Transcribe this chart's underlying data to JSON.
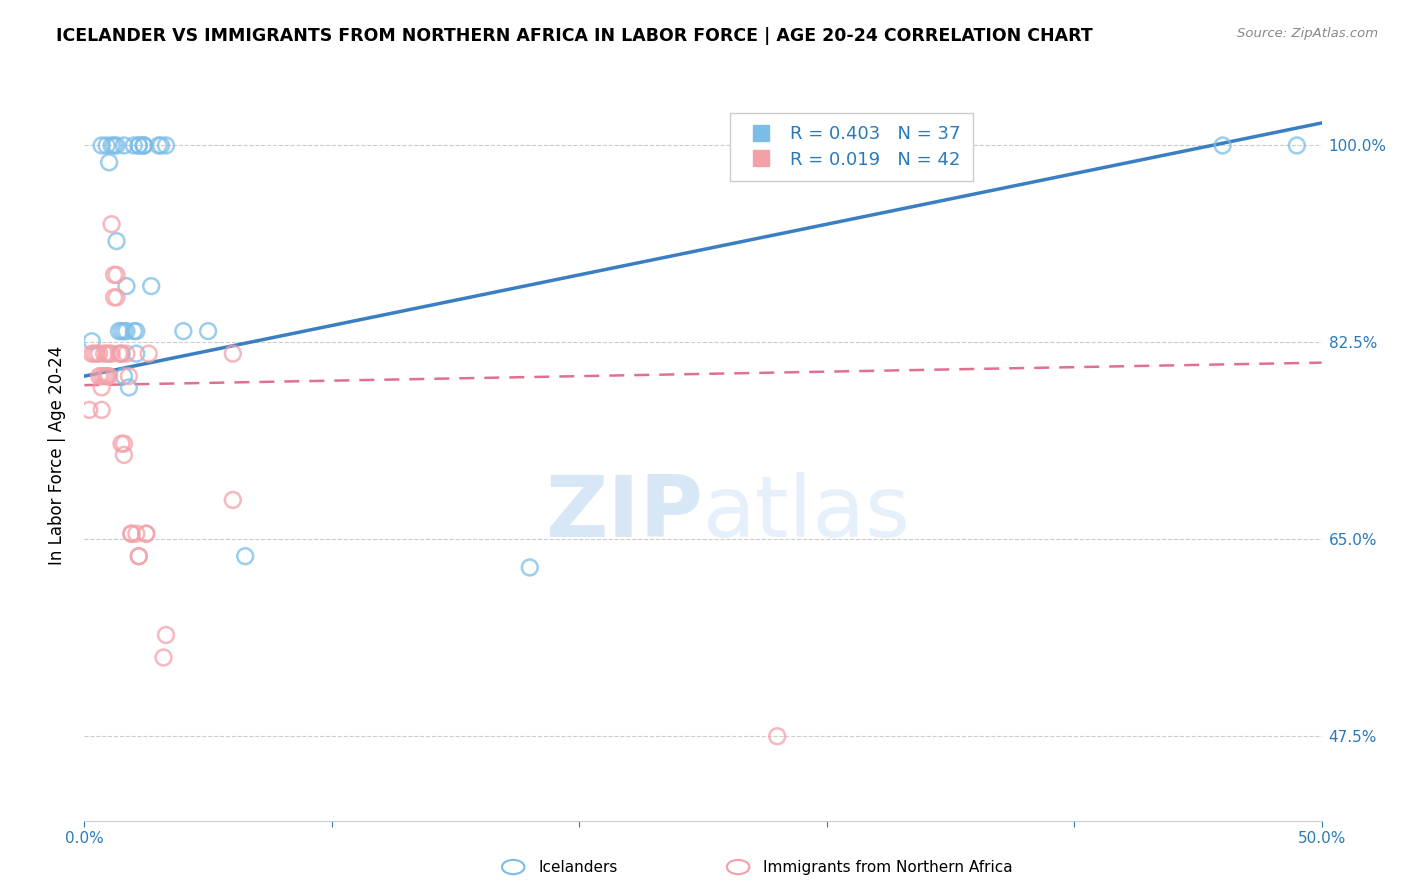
{
  "title": "ICELANDER VS IMMIGRANTS FROM NORTHERN AFRICA IN LABOR FORCE | AGE 20-24 CORRELATION CHART",
  "source": "Source: ZipAtlas.com",
  "ylabel": "In Labor Force | Age 20-24",
  "ytick_labels": [
    "100.0%",
    "82.5%",
    "65.0%",
    "47.5%"
  ],
  "ytick_values": [
    1.0,
    0.825,
    0.65,
    0.475
  ],
  "xlim": [
    0.0,
    0.5
  ],
  "ylim": [
    0.4,
    1.05
  ],
  "legend_r_blue": "R = 0.403",
  "legend_n_blue": "N = 37",
  "legend_r_pink": "R = 0.019",
  "legend_n_pink": "N = 42",
  "blue_color": "#7bbde8",
  "pink_color": "#f4a0a8",
  "line_blue_color": "#3a7fc1",
  "line_pink_color": "#e07090",
  "blue_scatter": [
    [
      0.003,
      0.826
    ],
    [
      0.007,
      1.0
    ],
    [
      0.009,
      1.0
    ],
    [
      0.01,
      0.985
    ],
    [
      0.011,
      1.0
    ],
    [
      0.012,
      1.0
    ],
    [
      0.013,
      1.0
    ],
    [
      0.013,
      0.915
    ],
    [
      0.014,
      0.835
    ],
    [
      0.015,
      0.835
    ],
    [
      0.015,
      0.815
    ],
    [
      0.016,
      0.795
    ],
    [
      0.016,
      1.0
    ],
    [
      0.016,
      0.835
    ],
    [
      0.017,
      0.875
    ],
    [
      0.017,
      0.835
    ],
    [
      0.018,
      0.785
    ],
    [
      0.02,
      1.0
    ],
    [
      0.02,
      0.835
    ],
    [
      0.021,
      0.835
    ],
    [
      0.021,
      0.815
    ],
    [
      0.022,
      1.0
    ],
    [
      0.022,
      1.0
    ],
    [
      0.024,
      1.0
    ],
    [
      0.024,
      1.0
    ],
    [
      0.024,
      1.0
    ],
    [
      0.027,
      0.875
    ],
    [
      0.03,
      1.0
    ],
    [
      0.031,
      1.0
    ],
    [
      0.033,
      1.0
    ],
    [
      0.04,
      0.835
    ],
    [
      0.05,
      0.835
    ],
    [
      0.065,
      0.635
    ],
    [
      0.18,
      0.625
    ],
    [
      0.33,
      1.0
    ],
    [
      0.46,
      1.0
    ],
    [
      0.49,
      1.0
    ]
  ],
  "pink_scatter": [
    [
      0.002,
      0.765
    ],
    [
      0.003,
      0.815
    ],
    [
      0.004,
      0.815
    ],
    [
      0.005,
      0.815
    ],
    [
      0.006,
      0.815
    ],
    [
      0.006,
      0.795
    ],
    [
      0.007,
      0.795
    ],
    [
      0.007,
      0.785
    ],
    [
      0.007,
      0.765
    ],
    [
      0.008,
      0.815
    ],
    [
      0.008,
      0.795
    ],
    [
      0.009,
      0.815
    ],
    [
      0.009,
      0.795
    ],
    [
      0.009,
      0.795
    ],
    [
      0.01,
      0.815
    ],
    [
      0.01,
      0.795
    ],
    [
      0.011,
      0.815
    ],
    [
      0.011,
      0.93
    ],
    [
      0.012,
      0.885
    ],
    [
      0.012,
      0.865
    ],
    [
      0.013,
      0.885
    ],
    [
      0.013,
      0.865
    ],
    [
      0.014,
      0.815
    ],
    [
      0.015,
      0.815
    ],
    [
      0.015,
      0.735
    ],
    [
      0.016,
      0.735
    ],
    [
      0.016,
      0.725
    ],
    [
      0.017,
      0.815
    ],
    [
      0.018,
      0.795
    ],
    [
      0.019,
      0.655
    ],
    [
      0.019,
      0.655
    ],
    [
      0.021,
      0.655
    ],
    [
      0.022,
      0.635
    ],
    [
      0.022,
      0.635
    ],
    [
      0.025,
      0.655
    ],
    [
      0.025,
      0.655
    ],
    [
      0.026,
      0.815
    ],
    [
      0.032,
      0.545
    ],
    [
      0.033,
      0.565
    ],
    [
      0.06,
      0.815
    ],
    [
      0.06,
      0.685
    ],
    [
      0.28,
      0.475
    ]
  ],
  "blue_trendline_x": [
    0.0,
    0.5
  ],
  "blue_trendline_y": [
    0.795,
    1.02
  ],
  "pink_trendline_x": [
    0.0,
    0.5
  ],
  "pink_trendline_y": [
    0.787,
    0.807
  ]
}
